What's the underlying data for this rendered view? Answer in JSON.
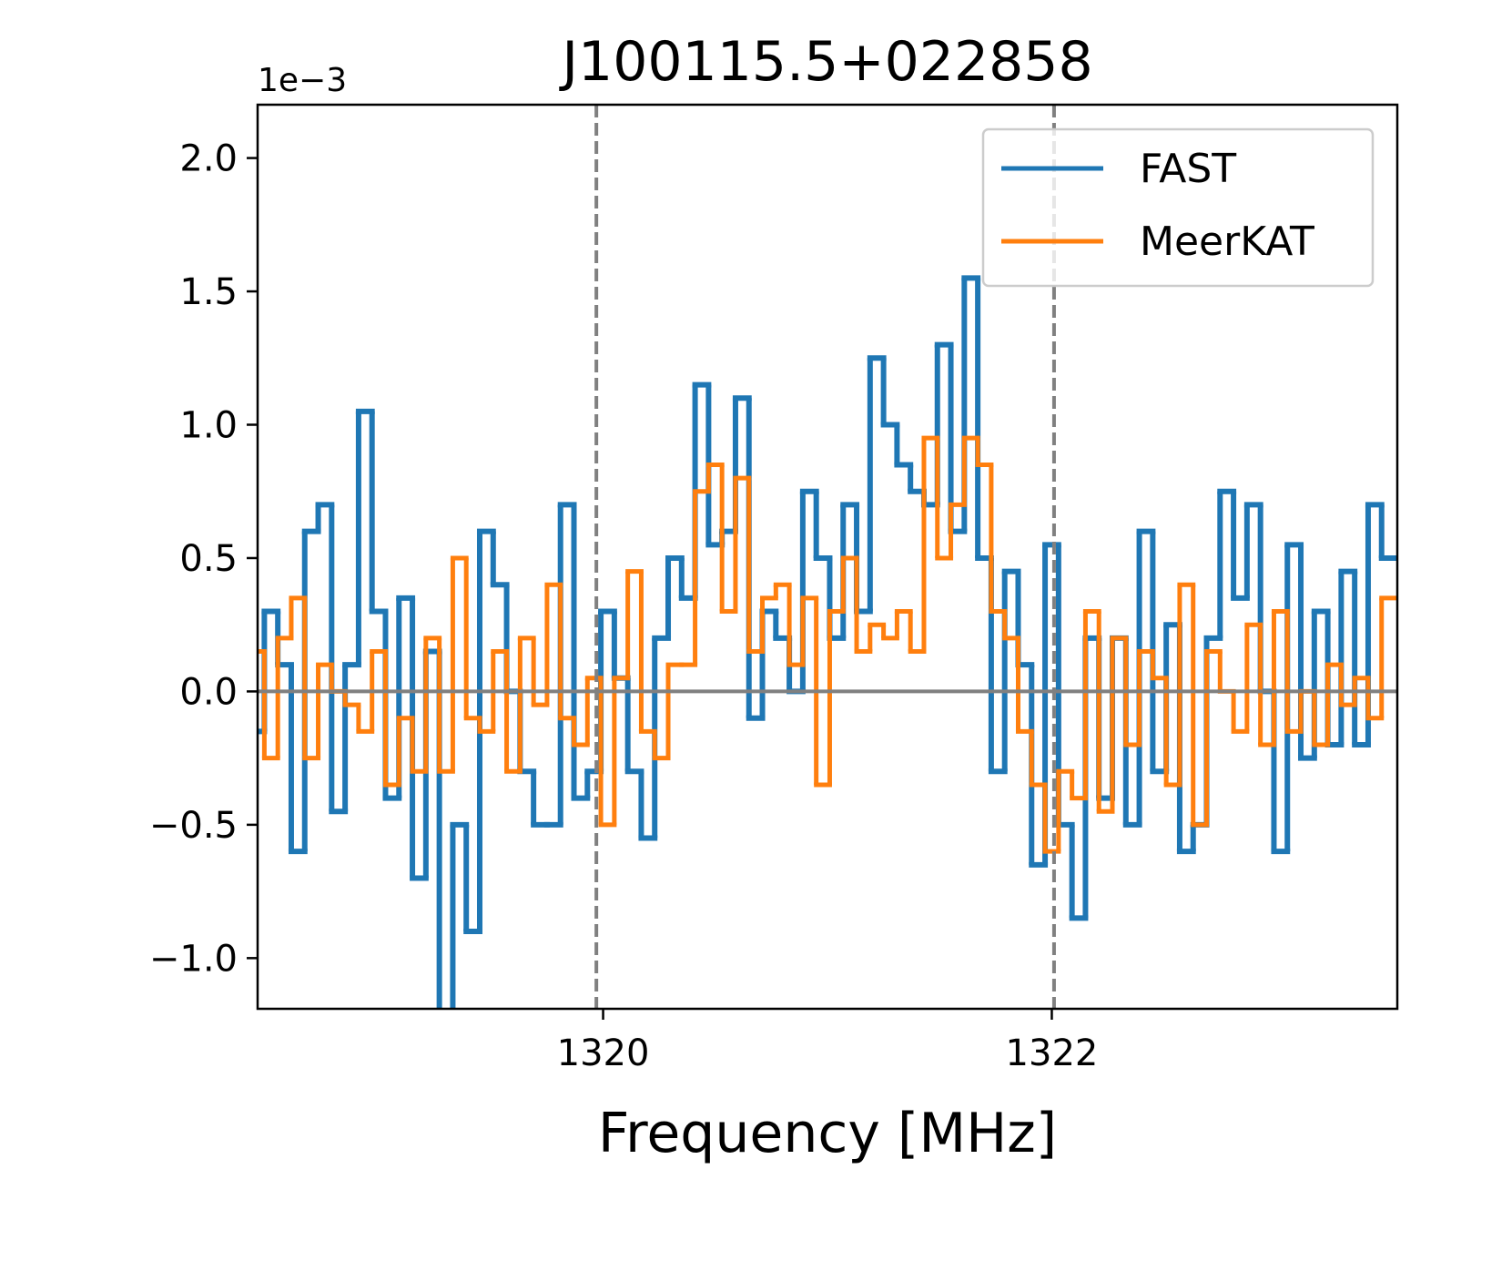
{
  "chart_data": {
    "type": "step",
    "step": "mid",
    "title": "J100115.5+022858",
    "xlabel": "Frequency [MHz]",
    "offset_text": "1e−3",
    "x": [
      1318.46,
      1318.52,
      1318.58,
      1318.64,
      1318.7,
      1318.76,
      1318.82,
      1318.88,
      1318.94,
      1319.0,
      1319.06,
      1319.12,
      1319.18,
      1319.24,
      1319.3,
      1319.36,
      1319.42,
      1319.48,
      1319.54,
      1319.6,
      1319.66,
      1319.72,
      1319.78,
      1319.84,
      1319.9,
      1319.96,
      1320.02,
      1320.08,
      1320.14,
      1320.2,
      1320.26,
      1320.32,
      1320.38,
      1320.44,
      1320.5,
      1320.56,
      1320.62,
      1320.68,
      1320.74,
      1320.8,
      1320.86,
      1320.92,
      1320.98,
      1321.04,
      1321.1,
      1321.16,
      1321.22,
      1321.28,
      1321.34,
      1321.4,
      1321.46,
      1321.52,
      1321.58,
      1321.64,
      1321.7,
      1321.76,
      1321.82,
      1321.88,
      1321.94,
      1322.0,
      1322.06,
      1322.12,
      1322.18,
      1322.24,
      1322.3,
      1322.36,
      1322.42,
      1322.48,
      1322.54,
      1322.6,
      1322.66,
      1322.72,
      1322.78,
      1322.84,
      1322.9,
      1322.96,
      1323.02,
      1323.08,
      1323.14,
      1323.2,
      1323.26,
      1323.32,
      1323.38,
      1323.44,
      1323.5
    ],
    "series": [
      {
        "name": "FAST",
        "color": "#1f77b4",
        "width": 6,
        "values": [
          -0.15,
          0.3,
          0.1,
          -0.6,
          0.6,
          0.7,
          -0.45,
          0.1,
          1.05,
          0.3,
          -0.4,
          0.35,
          -0.7,
          0.15,
          -1.2,
          -0.5,
          -0.9,
          0.6,
          0.4,
          0.0,
          -0.3,
          -0.5,
          -0.5,
          0.7,
          -0.4,
          -0.3,
          0.3,
          0.05,
          -0.3,
          -0.55,
          0.2,
          0.5,
          0.35,
          1.15,
          0.55,
          0.6,
          1.1,
          -0.1,
          0.3,
          0.2,
          0.0,
          0.75,
          0.5,
          0.2,
          0.7,
          0.3,
          1.25,
          1.0,
          0.85,
          0.75,
          0.7,
          1.3,
          0.6,
          1.55,
          0.5,
          -0.3,
          0.45,
          0.1,
          -0.65,
          0.55,
          -0.5,
          -0.85,
          0.2,
          -0.4,
          0.2,
          -0.5,
          0.6,
          -0.3,
          0.25,
          -0.6,
          -0.5,
          0.2,
          0.75,
          0.35,
          0.7,
          0.0,
          -0.6,
          0.55,
          -0.25,
          0.3,
          -0.2,
          0.45,
          -0.2,
          0.7,
          0.5
        ]
      },
      {
        "name": "MeerKAT",
        "color": "#ff7f0e",
        "width": 5,
        "values": [
          0.15,
          -0.25,
          0.2,
          0.35,
          -0.25,
          0.1,
          0.0,
          -0.05,
          -0.15,
          0.15,
          -0.35,
          -0.1,
          -0.3,
          0.2,
          -0.3,
          0.5,
          -0.1,
          -0.15,
          0.15,
          -0.3,
          0.2,
          -0.05,
          0.4,
          -0.1,
          -0.2,
          0.05,
          -0.5,
          0.05,
          0.45,
          -0.15,
          -0.25,
          0.1,
          0.1,
          0.75,
          0.85,
          0.3,
          0.8,
          0.15,
          0.35,
          0.4,
          0.1,
          0.35,
          -0.35,
          0.3,
          0.5,
          0.15,
          0.25,
          0.2,
          0.3,
          0.15,
          0.95,
          0.5,
          0.7,
          0.95,
          0.85,
          0.3,
          0.2,
          -0.15,
          -0.35,
          -0.6,
          -0.3,
          -0.4,
          0.3,
          -0.45,
          0.2,
          -0.2,
          0.15,
          0.05,
          -0.35,
          0.4,
          -0.5,
          0.15,
          0.0,
          -0.15,
          0.25,
          -0.2,
          0.3,
          -0.15,
          0.0,
          -0.2,
          0.1,
          -0.05,
          0.05,
          -0.1,
          0.35
        ]
      }
    ],
    "xlim": [
      1318.46,
      1323.54
    ],
    "ylim": [
      -1.19,
      2.2
    ],
    "xticks": [
      1320,
      1322
    ],
    "yticks": [
      {
        "value": -1.0,
        "label": "−1.0"
      },
      {
        "value": -0.5,
        "label": "−0.5"
      },
      {
        "value": 0.0,
        "label": "0.0"
      },
      {
        "value": 0.5,
        "label": "0.5"
      },
      {
        "value": 1.0,
        "label": "1.0"
      },
      {
        "value": 1.5,
        "label": "1.5"
      },
      {
        "value": 2.0,
        "label": "2.0"
      }
    ],
    "vlines": [
      1319.97,
      1322.01
    ],
    "hline": 0,
    "reference_color": "#808080",
    "legend": "upper right"
  }
}
